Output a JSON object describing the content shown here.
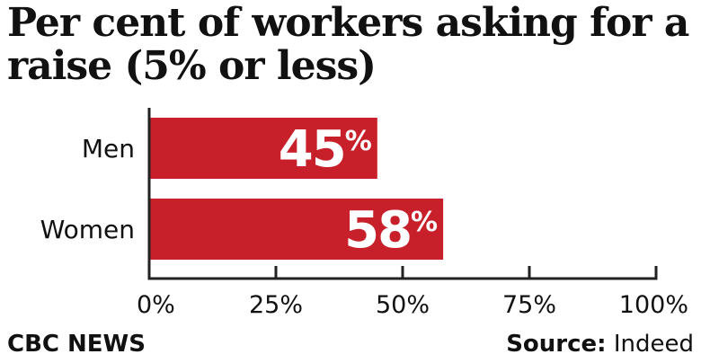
{
  "chart_data": {
    "type": "bar",
    "orientation": "horizontal",
    "title": "Per cent of workers asking for a raise (5% or less)",
    "categories": [
      "Men",
      "Women"
    ],
    "values": [
      45,
      58
    ],
    "value_labels": [
      "45",
      "58"
    ],
    "value_suffix": "%",
    "xlim": [
      0,
      100
    ],
    "x_ticks": [
      "0%",
      "25%",
      "50%",
      "75%",
      "100%"
    ],
    "x_tick_values": [
      0,
      25,
      50,
      75,
      100
    ],
    "grid": false,
    "bar_color": "#c8202a"
  },
  "footer": {
    "brand": "CBC NEWS",
    "source_label": "Source:",
    "source_value": "Indeed"
  }
}
